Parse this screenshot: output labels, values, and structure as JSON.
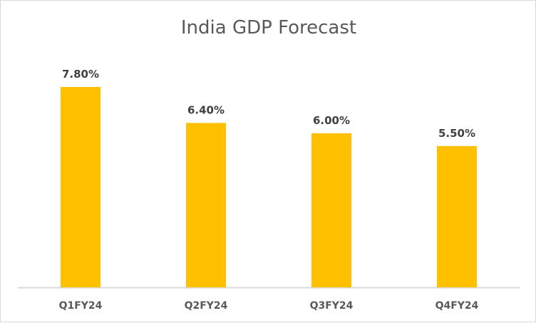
{
  "chart_data": {
    "type": "bar",
    "title": "India GDP Forecast",
    "categories": [
      "Q1FY24",
      "Q2FY24",
      "Q3FY24",
      "Q4FY24"
    ],
    "values": [
      7.8,
      6.4,
      6.0,
      5.5
    ],
    "data_labels": [
      "7.80%",
      "6.40%",
      "6.00%",
      "5.50%"
    ],
    "xlabel": "",
    "ylabel": "",
    "ylim": [
      0,
      7.8
    ],
    "grid": false,
    "legend": "none",
    "bar_color": "#ffc000",
    "axis_color": "#d9d9d9",
    "text_color": "#595959"
  }
}
